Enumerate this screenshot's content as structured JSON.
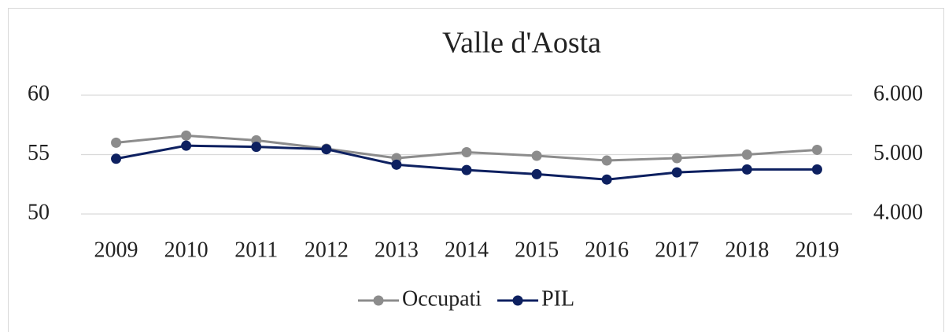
{
  "chart_data": {
    "type": "line",
    "title": "Valle d'Aosta",
    "categories": [
      "2009",
      "2010",
      "2011",
      "2012",
      "2013",
      "2014",
      "2015",
      "2016",
      "2017",
      "2018",
      "2019"
    ],
    "series": [
      {
        "name": "Occupati",
        "color": "#8c8c8c",
        "values": [
          56.0,
          56.6,
          56.2,
          55.5,
          54.7,
          55.2,
          54.9,
          54.5,
          54.7,
          55.0,
          55.4
        ]
      },
      {
        "name": "PIL",
        "color": "#0d2060",
        "axis": "y2",
        "values": [
          4930,
          5150,
          5130,
          5090,
          4830,
          4740,
          4670,
          4580,
          4700,
          4750,
          4750
        ]
      }
    ],
    "ylim": [
      50,
      60
    ],
    "yticks": [
      50,
      55,
      60
    ],
    "y2lim": [
      4000,
      6000
    ],
    "y2ticks": [
      {
        "value": 4000,
        "label": "4.000"
      },
      {
        "value": 5000,
        "label": "5.000"
      },
      {
        "value": 6000,
        "label": "6.000"
      }
    ],
    "grid": true,
    "legend": "bottom"
  }
}
